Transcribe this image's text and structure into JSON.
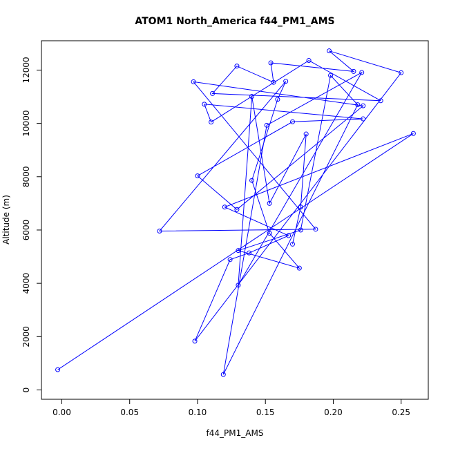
{
  "chart_data": {
    "type": "line",
    "title": "ATOM1 North_America f44_PM1_AMS",
    "xlabel": "f44_PM1_AMS",
    "ylabel": "Altitude (m)",
    "xlim": [
      -0.015,
      0.27
    ],
    "ylim": [
      -350,
      13100
    ],
    "xticks": [
      0.0,
      0.05,
      0.1,
      0.15,
      0.2,
      0.25
    ],
    "xtick_labels": [
      "0.00",
      "0.05",
      "0.10",
      "0.15",
      "0.20",
      "0.25"
    ],
    "yticks": [
      0,
      2000,
      4000,
      6000,
      8000,
      10000,
      12000
    ],
    "ytick_labels": [
      "0",
      "2000",
      "4000",
      "6000",
      "8000",
      "10000",
      "12000"
    ],
    "grid": false,
    "series_color": "#0000ff",
    "series": [
      {
        "x": [
          -0.003,
          0.259,
          0.12,
          0.167,
          0.138,
          0.124,
          0.098,
          0.25,
          0.197,
          0.215,
          0.154,
          0.156,
          0.129,
          0.111,
          0.235,
          0.182,
          0.11,
          0.105,
          0.222,
          0.17,
          0.1,
          0.129,
          0.222,
          0.097,
          0.187,
          0.072,
          0.165,
          0.159,
          0.14,
          0.153,
          0.175,
          0.13,
          0.176,
          0.198,
          0.218,
          0.119,
          0.151,
          0.221,
          0.13,
          0.14,
          0.153,
          0.18,
          0.176,
          0.17
        ],
        "y": [
          760,
          9620,
          6860,
          5790,
          5140,
          4890,
          1830,
          11900,
          12720,
          11950,
          12270,
          11540,
          12150,
          11120,
          10850,
          12360,
          10050,
          10720,
          10170,
          10060,
          8030,
          6770,
          10660,
          11560,
          6030,
          5960,
          11580,
          10900,
          7860,
          5880,
          4570,
          5230,
          6000,
          11800,
          10700,
          580,
          9930,
          11910,
          3930,
          11010,
          7000,
          9600,
          6860,
          5470
        ]
      }
    ]
  }
}
